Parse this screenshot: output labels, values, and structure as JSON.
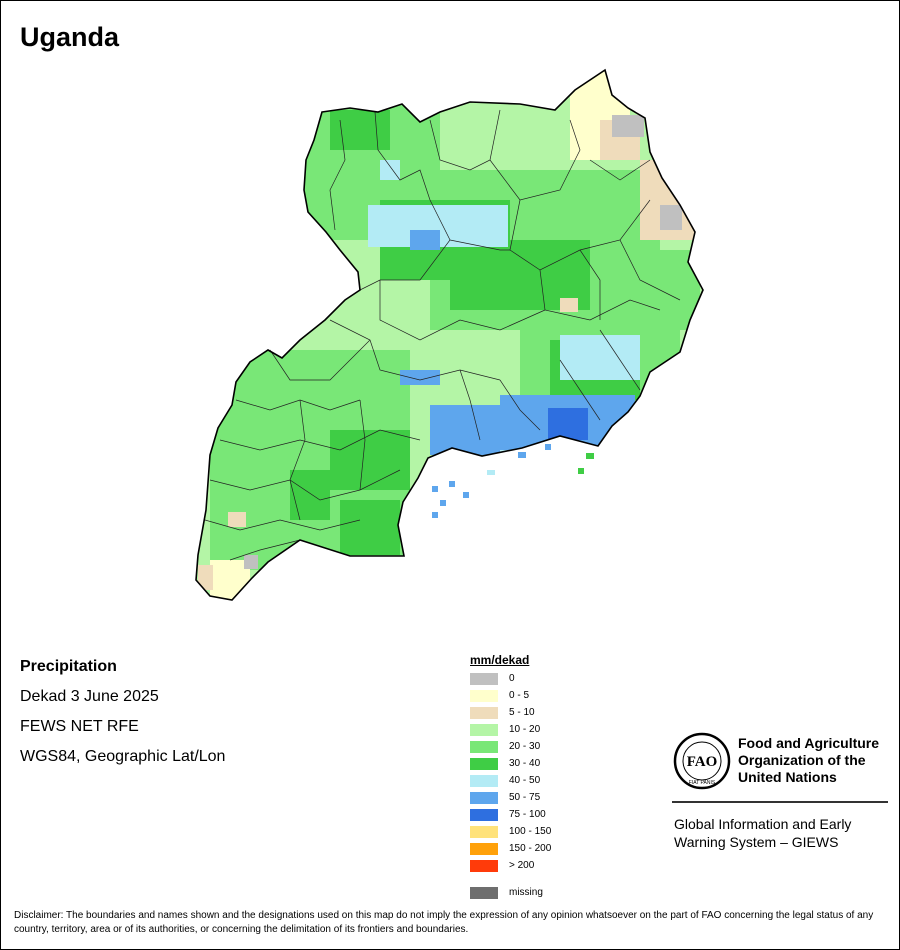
{
  "title": "Uganda",
  "info": {
    "variable": "Precipitation",
    "period": "Dekad 3 June 2025",
    "source": "FEWS NET RFE",
    "projection": "WGS84, Geographic Lat/Lon"
  },
  "legend": {
    "unit": "mm/dekad",
    "classes": [
      {
        "label": "0",
        "color": "#c0c0c0"
      },
      {
        "label": "0 - 5",
        "color": "#ffffcc"
      },
      {
        "label": "5 - 10",
        "color": "#efdcbb"
      },
      {
        "label": "10 - 20",
        "color": "#b4f5a6"
      },
      {
        "label": "20 - 30",
        "color": "#79e777"
      },
      {
        "label": "30 - 40",
        "color": "#3fcd45"
      },
      {
        "label": "40 - 50",
        "color": "#b3ebf5"
      },
      {
        "label": "50 - 75",
        "color": "#5ea6ed"
      },
      {
        "label": "75 - 100",
        "color": "#2e6fe0"
      },
      {
        "label": "100 - 150",
        "color": "#ffe27a"
      },
      {
        "label": "150 - 200",
        "color": "#ffa10a"
      },
      {
        "label": "> 200",
        "color": "#ff3b0a"
      }
    ],
    "missing": {
      "label": "missing",
      "color": "#6e6e6e"
    }
  },
  "logo": {
    "emblem_text": "FAO",
    "emblem_motto": "FIAT PANIS",
    "org_name": "Food and Agriculture Organization of the United Nations",
    "system_name": "Global Information and Early Warning System – GIEWS"
  },
  "disclaimer": "Disclaimer: The boundaries and names shown and the designations used on this map do not imply the expression of any opinion whatsoever on the part of FAO concerning the legal status of any country, territory, area or of its authorities, or concerning the delimitation of its frontiers and boundaries."
}
